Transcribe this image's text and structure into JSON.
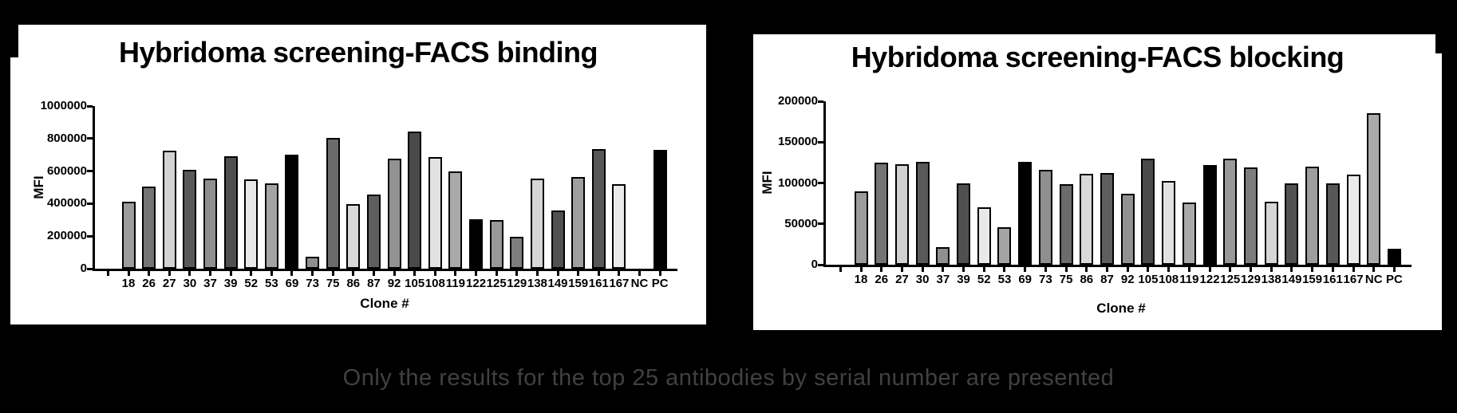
{
  "figure": {
    "background_color": "#000000",
    "panel_color": "#ffffff",
    "caption": "Only the results for the top 25 antibodies by serial number are presented",
    "caption_color": "#414141"
  },
  "chart_data": [
    {
      "type": "bar",
      "title": "Hybridoma screening-FACS binding",
      "xlabel": "Clone #",
      "ylabel": "MFI",
      "ylim": [
        0,
        1000000
      ],
      "yticks": [
        0,
        200000,
        400000,
        600000,
        800000,
        1000000
      ],
      "grid": false,
      "legend": "none",
      "categories": [
        "18",
        "26",
        "27",
        "30",
        "37",
        "39",
        "52",
        "53",
        "69",
        "73",
        "75",
        "86",
        "87",
        "92",
        "105",
        "108",
        "119",
        "122",
        "125",
        "129",
        "138",
        "149",
        "159",
        "161",
        "167",
        "NC",
        "PC"
      ],
      "values": [
        410000,
        505000,
        725000,
        610000,
        555000,
        690000,
        550000,
        525000,
        700000,
        75000,
        805000,
        395000,
        455000,
        675000,
        845000,
        685000,
        600000,
        305000,
        300000,
        195000,
        555000,
        360000,
        565000,
        735000,
        520000,
        0,
        730000
      ],
      "bar_colors": [
        "#9c9c9c",
        "#747474",
        "#d2d2d2",
        "#595959",
        "#8f8f8f",
        "#4f4f4f",
        "#e9e9e9",
        "#a4a4a4",
        "#000000",
        "#8f8f8f",
        "#6b6b6b",
        "#d9d9d9",
        "#5f5f5f",
        "#929292",
        "#4a4a4a",
        "#e2e2e2",
        "#a9a9a9",
        "#000000",
        "#999999",
        "#7d7d7d",
        "#d6d6d6",
        "#515151",
        "#9e9e9e",
        "#575757",
        "#eaeaea",
        "#ababab",
        "#000000"
      ],
      "axis_color": "#000000"
    },
    {
      "type": "bar",
      "title": "Hybridoma screening-FACS blocking",
      "xlabel": "Clone #",
      "ylabel": "MFI",
      "ylim": [
        0,
        200000
      ],
      "yticks": [
        0,
        50000,
        100000,
        150000,
        200000
      ],
      "grid": false,
      "legend": "none",
      "categories": [
        "18",
        "26",
        "27",
        "30",
        "37",
        "39",
        "52",
        "53",
        "69",
        "73",
        "75",
        "86",
        "87",
        "92",
        "105",
        "108",
        "119",
        "122",
        "125",
        "129",
        "138",
        "149",
        "159",
        "161",
        "167",
        "NC",
        "PC"
      ],
      "values": [
        90000,
        125000,
        123000,
        126000,
        21000,
        100000,
        70000,
        46000,
        126000,
        116000,
        99000,
        111000,
        112000,
        87000,
        130000,
        102000,
        76000,
        122000,
        130000,
        119000,
        77000,
        100000,
        120000,
        100000,
        110000,
        185000,
        20000
      ],
      "bar_colors": [
        "#9c9c9c",
        "#747474",
        "#d2d2d2",
        "#595959",
        "#8f8f8f",
        "#4f4f4f",
        "#e9e9e9",
        "#a4a4a4",
        "#000000",
        "#8f8f8f",
        "#6b6b6b",
        "#d9d9d9",
        "#5f5f5f",
        "#929292",
        "#4a4a4a",
        "#e2e2e2",
        "#a9a9a9",
        "#000000",
        "#999999",
        "#7d7d7d",
        "#d6d6d6",
        "#515151",
        "#9e9e9e",
        "#575757",
        "#eaeaea",
        "#ababab",
        "#000000"
      ],
      "axis_color": "#000000"
    }
  ]
}
